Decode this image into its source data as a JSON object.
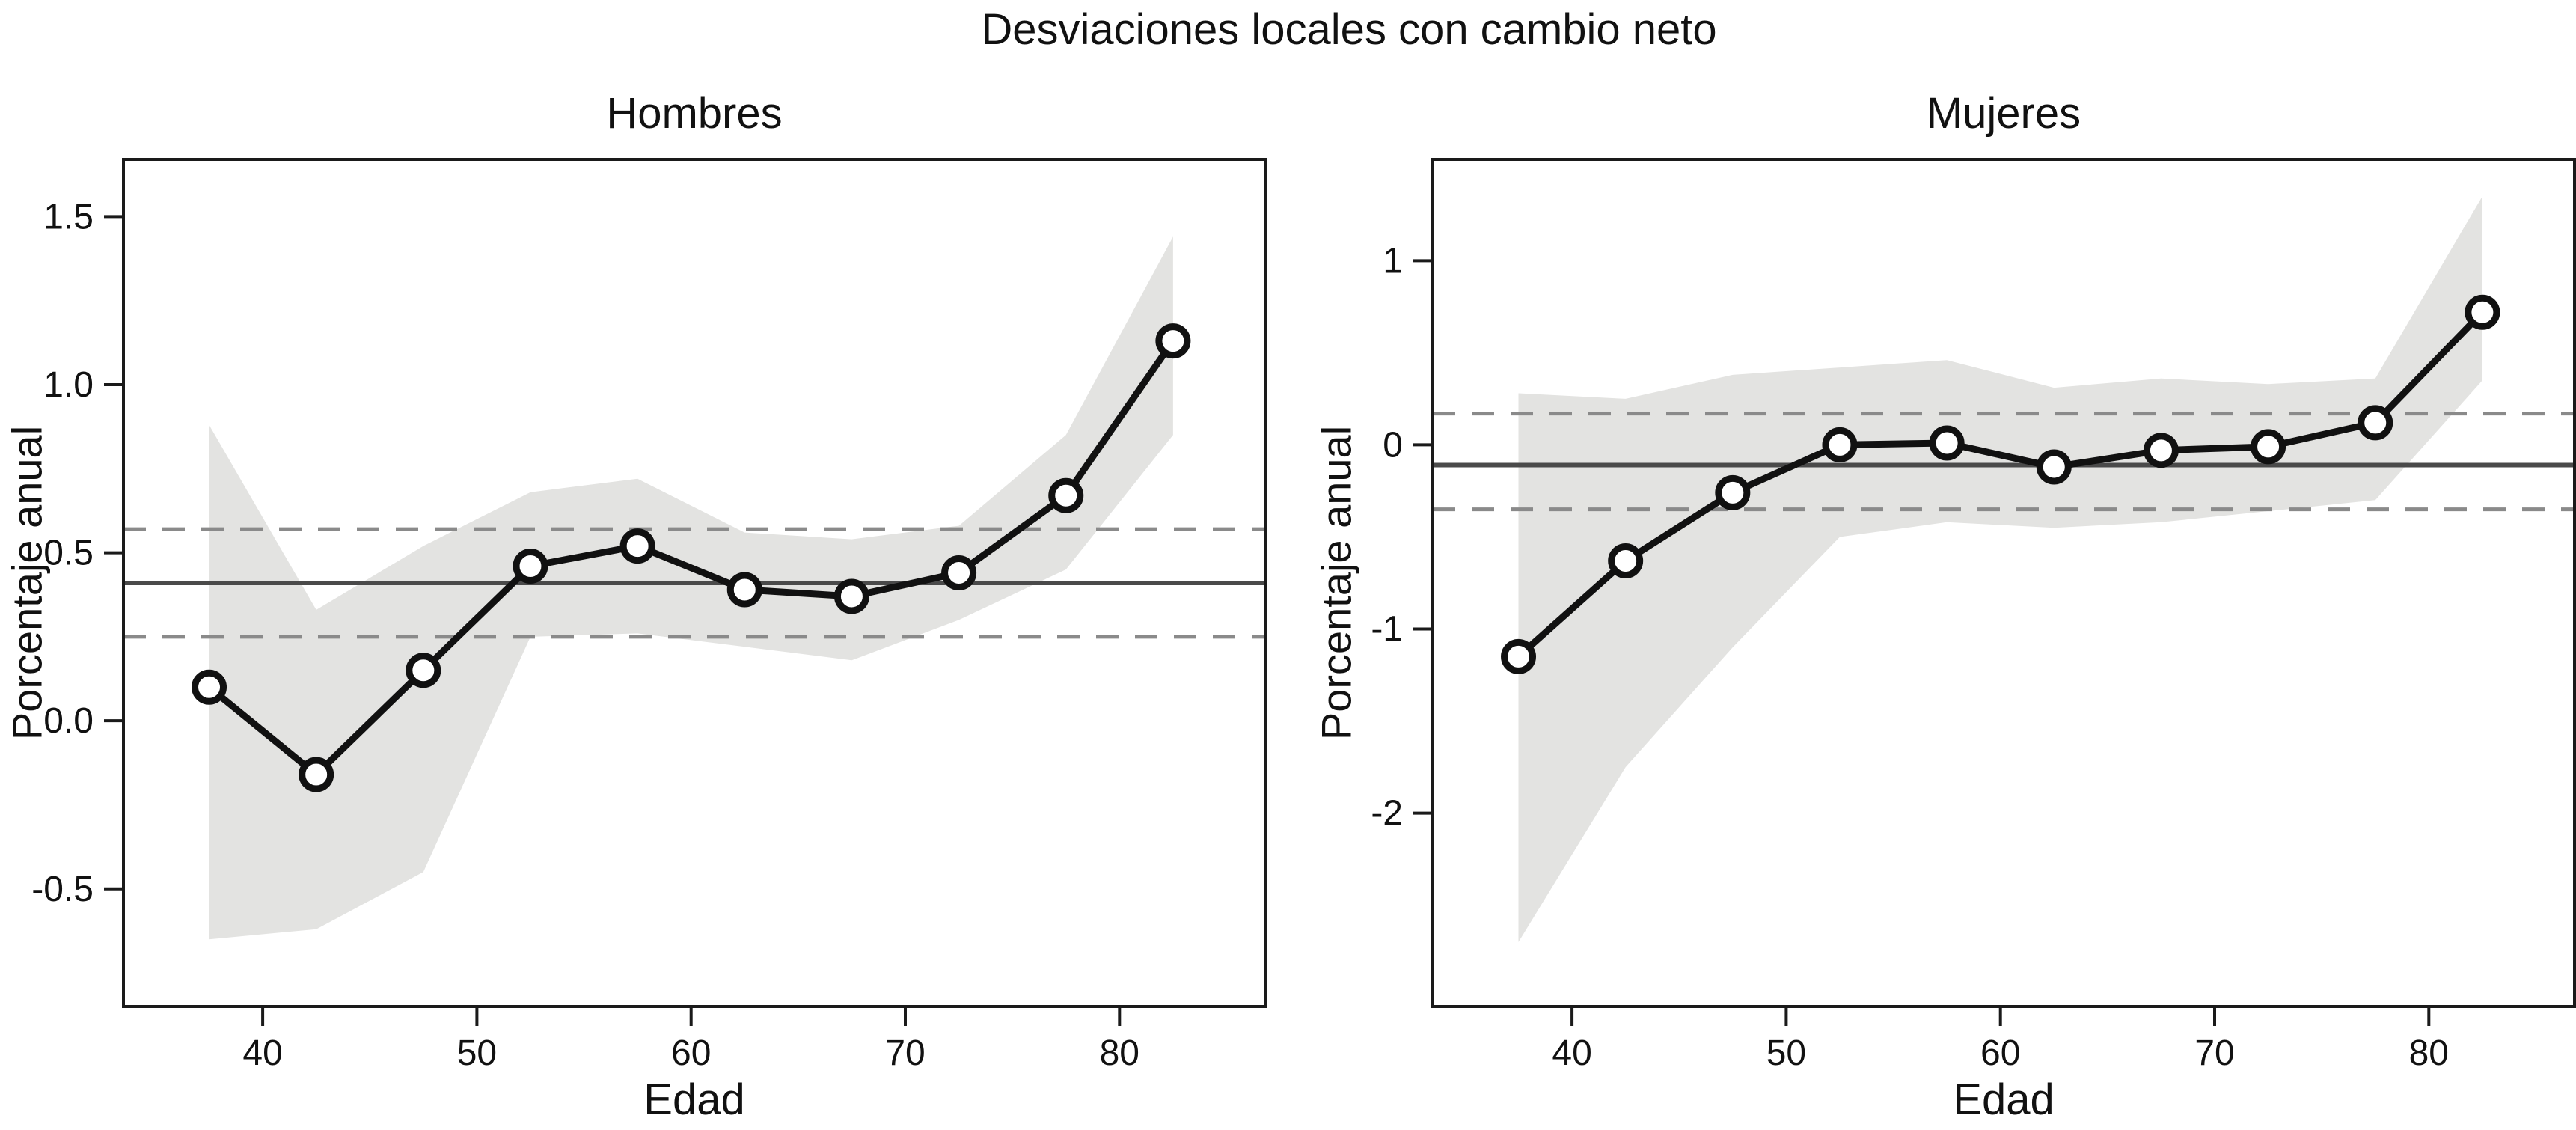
{
  "title": "Desviaciones locales con cambio neto",
  "chart_data": {
    "type": "line",
    "title": "Desviaciones locales con cambio neto",
    "legend": "none",
    "grid": false,
    "marker": "open-circle",
    "band_meaning": "confidence band (shaded gray region)",
    "panels": [
      {
        "title": "Hombres",
        "xlabel": "Edad",
        "ylabel": "Porcentaje anual",
        "x": [
          37.5,
          42.5,
          47.5,
          52.5,
          57.5,
          62.5,
          67.5,
          72.5,
          77.5,
          82.5
        ],
        "y": [
          0.1,
          -0.16,
          0.15,
          0.46,
          0.52,
          0.39,
          0.37,
          0.44,
          0.67,
          1.13
        ],
        "band_upper": [
          0.88,
          0.33,
          0.52,
          0.68,
          0.72,
          0.56,
          0.54,
          0.58,
          0.85,
          1.44
        ],
        "band_lower": [
          -0.65,
          -0.62,
          -0.45,
          0.25,
          0.26,
          0.22,
          0.18,
          0.3,
          0.45,
          0.85
        ],
        "mean_line": 0.41,
        "ci_lines": [
          0.57,
          0.25
        ],
        "xlim": [
          33.5,
          86.8
        ],
        "ylim": [
          -0.85,
          1.67
        ],
        "xticks": [
          40,
          50,
          60,
          70,
          80
        ],
        "xtick_labels": [
          "40",
          "50",
          "60",
          "70",
          "80"
        ],
        "yticks": [
          1.5,
          1.0,
          0.5,
          0.0,
          -0.5
        ],
        "ytick_labels": [
          "1.5",
          "1.0",
          "0.5",
          "0.0",
          "-0.5"
        ]
      },
      {
        "title": "Mujeres",
        "xlabel": "Edad",
        "ylabel": "Porcentaje anual",
        "x": [
          37.5,
          42.5,
          47.5,
          52.5,
          57.5,
          62.5,
          67.5,
          72.5,
          77.5,
          82.5
        ],
        "y": [
          -1.15,
          -0.63,
          -0.26,
          0.0,
          0.01,
          -0.12,
          -0.03,
          -0.01,
          0.12,
          0.72
        ],
        "band_upper": [
          0.28,
          0.25,
          0.38,
          0.42,
          0.46,
          0.31,
          0.36,
          0.33,
          0.36,
          1.35
        ],
        "band_lower": [
          -2.7,
          -1.75,
          -1.1,
          -0.5,
          -0.42,
          -0.45,
          -0.42,
          -0.36,
          -0.3,
          0.35
        ],
        "mean_line": -0.11,
        "ci_lines": [
          0.17,
          -0.35
        ],
        "xlim": [
          33.5,
          86.8
        ],
        "ylim": [
          -3.05,
          1.55
        ],
        "xticks": [
          40,
          50,
          60,
          70,
          80
        ],
        "xtick_labels": [
          "40",
          "50",
          "60",
          "70",
          "80"
        ],
        "yticks": [
          1,
          0,
          -1,
          -2
        ],
        "ytick_labels": [
          "1",
          "0",
          "-1",
          "-2"
        ]
      }
    ],
    "styles": {
      "band_color": "#e3e3e1",
      "series_color": "#111111",
      "mean_line_color": "#4a4a4a",
      "ci_line_color": "#8a8a8a",
      "marker_fill": "#ffffff",
      "axis_color": "#1a1a1a",
      "text_color": "#111111",
      "background": "#ffffff"
    }
  }
}
